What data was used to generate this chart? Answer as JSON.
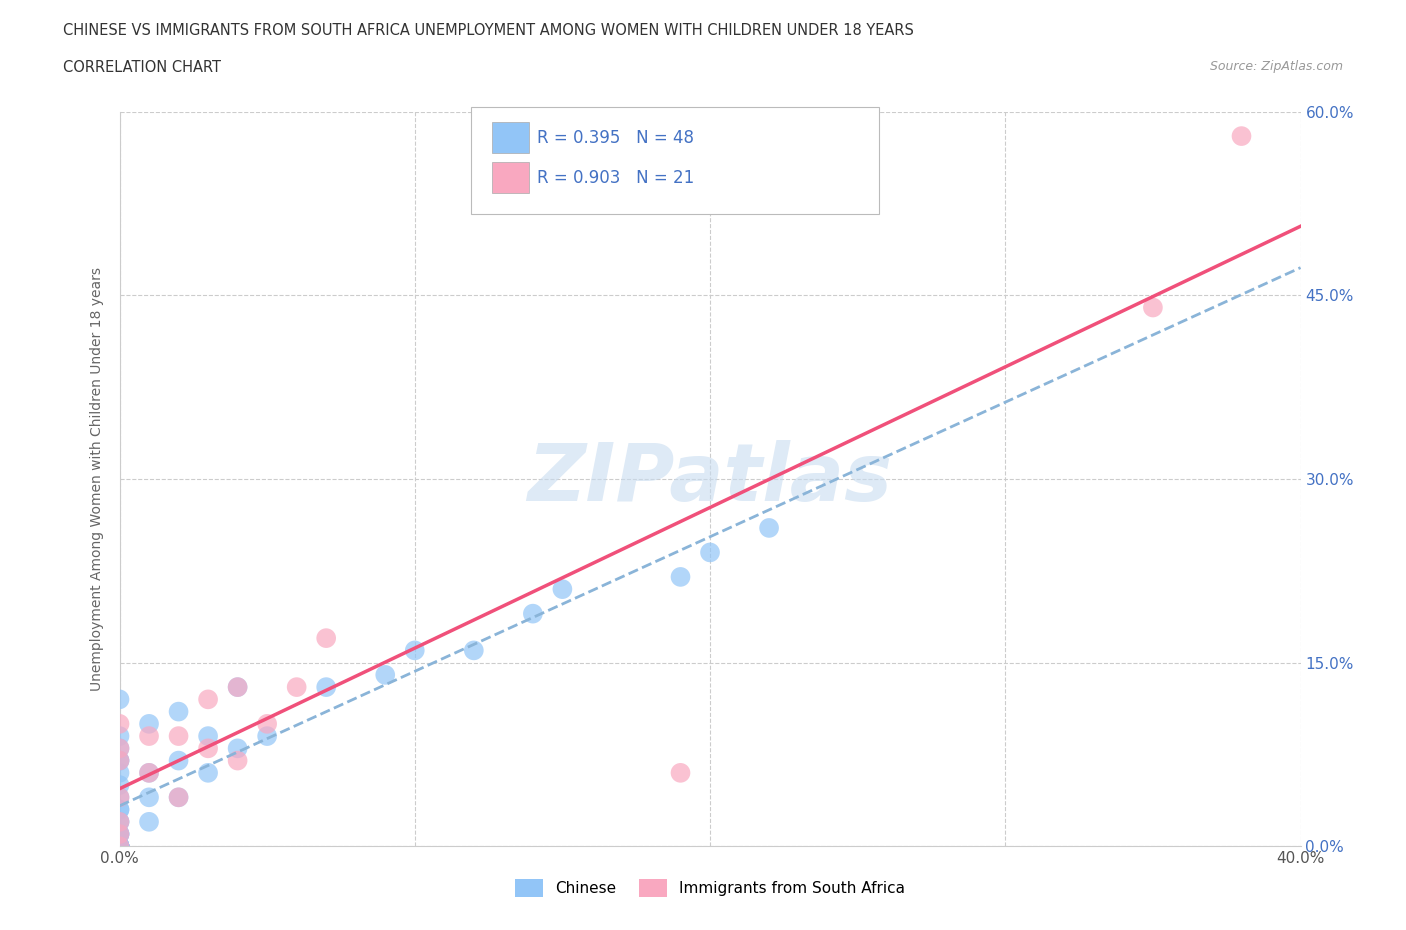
{
  "title_line1": "CHINESE VS IMMIGRANTS FROM SOUTH AFRICA UNEMPLOYMENT AMONG WOMEN WITH CHILDREN UNDER 18 YEARS",
  "title_line2": "CORRELATION CHART",
  "source_text": "Source: ZipAtlas.com",
  "ylabel": "Unemployment Among Women with Children Under 18 years",
  "xlim": [
    0.0,
    0.4
  ],
  "ylim": [
    0.0,
    0.6
  ],
  "ytick_labels": [
    "0.0%",
    "15.0%",
    "30.0%",
    "45.0%",
    "60.0%"
  ],
  "ytick_values": [
    0.0,
    0.15,
    0.3,
    0.45,
    0.6
  ],
  "xtick_values": [
    0.0,
    0.1,
    0.2,
    0.3,
    0.4
  ],
  "xtick_labels": [
    "0.0%",
    "",
    "",
    "",
    "40.0%"
  ],
  "color_chinese": "#92C5F7",
  "color_sa": "#F9A8C0",
  "color_line_chinese": "#8AB4D8",
  "color_line_sa": "#F0507A",
  "watermark_color": "#C8DCF0",
  "chinese_x": [
    0.0,
    0.0,
    0.0,
    0.0,
    0.0,
    0.0,
    0.0,
    0.0,
    0.0,
    0.0,
    0.0,
    0.0,
    0.0,
    0.0,
    0.0,
    0.0,
    0.0,
    0.0,
    0.0,
    0.0,
    0.0,
    0.0,
    0.0,
    0.0,
    0.0,
    0.0,
    0.0,
    0.01,
    0.01,
    0.01,
    0.01,
    0.02,
    0.02,
    0.02,
    0.03,
    0.03,
    0.04,
    0.04,
    0.05,
    0.07,
    0.09,
    0.1,
    0.12,
    0.14,
    0.15,
    0.19,
    0.2,
    0.22
  ],
  "chinese_y": [
    0.0,
    0.0,
    0.0,
    0.0,
    0.0,
    0.0,
    0.0,
    0.0,
    0.0,
    0.0,
    0.0,
    0.0,
    0.01,
    0.01,
    0.01,
    0.02,
    0.02,
    0.03,
    0.03,
    0.04,
    0.05,
    0.06,
    0.07,
    0.07,
    0.08,
    0.09,
    0.12,
    0.02,
    0.04,
    0.06,
    0.1,
    0.04,
    0.07,
    0.11,
    0.06,
    0.09,
    0.08,
    0.13,
    0.09,
    0.13,
    0.14,
    0.16,
    0.16,
    0.19,
    0.21,
    0.22,
    0.24,
    0.26
  ],
  "sa_x": [
    0.0,
    0.0,
    0.0,
    0.0,
    0.0,
    0.0,
    0.0,
    0.01,
    0.01,
    0.02,
    0.02,
    0.03,
    0.03,
    0.04,
    0.04,
    0.05,
    0.06,
    0.07,
    0.19,
    0.35,
    0.38
  ],
  "sa_y": [
    0.0,
    0.01,
    0.02,
    0.04,
    0.07,
    0.08,
    0.1,
    0.06,
    0.09,
    0.04,
    0.09,
    0.08,
    0.12,
    0.07,
    0.13,
    0.1,
    0.13,
    0.17,
    0.06,
    0.44,
    0.58
  ]
}
